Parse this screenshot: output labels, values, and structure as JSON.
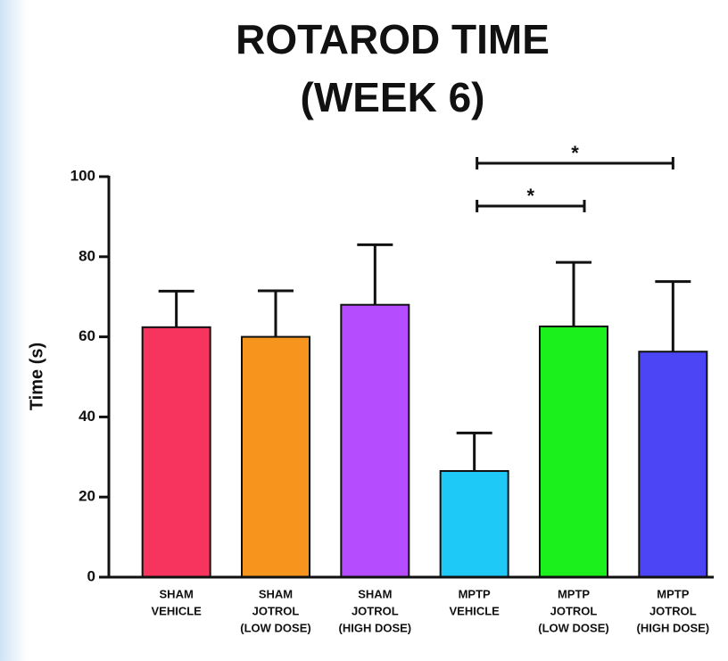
{
  "chart_data": {
    "type": "bar",
    "title": [
      "ROTAROD TIME",
      "(WEEK 6)"
    ],
    "ylabel": "Time (s)",
    "categories": [
      [
        "SHAM",
        "VEHICLE"
      ],
      [
        "SHAM",
        "JOTROL",
        "(LOW DOSE)"
      ],
      [
        "SHAM",
        "JOTROL",
        "(HIGH DOSE)"
      ],
      [
        "MPTP",
        "VEHICLE"
      ],
      [
        "MPTP",
        "JOTROL",
        "(LOW DOSE)"
      ],
      [
        "MPTP",
        "JOTROL",
        "(HIGH DOSE)"
      ]
    ],
    "values": [
      62.4,
      60,
      68,
      26.5,
      62.6,
      56.3
    ],
    "errors": [
      9,
      11.5,
      15,
      9.5,
      16,
      17.5
    ],
    "colors": [
      "#f7345e",
      "#f7941d",
      "#b54dff",
      "#1ec8f7",
      "#1cf01c",
      "#4b45f5"
    ],
    "ylim": [
      0,
      100
    ],
    "yticks": [
      0,
      20,
      40,
      60,
      80,
      100
    ],
    "annotations": [
      {
        "from": 3,
        "to": 5,
        "label": "*"
      },
      {
        "from": 3,
        "to": 4,
        "label": "*"
      }
    ]
  }
}
